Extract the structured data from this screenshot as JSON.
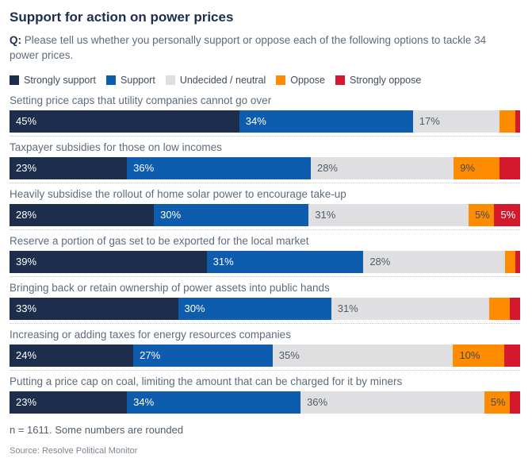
{
  "page": {
    "title": "Support for action on power prices",
    "question_prefix": "Q:",
    "question_text": " Please tell us whether you personally support or oppose each of the following options to tackle 34 power prices.",
    "footnote": "n = 1611. Some numbers are rounded",
    "source": "Source: Resolve Political Monitor"
  },
  "colors": {
    "series": [
      "#1d2e4d",
      "#0e5cae",
      "#dfdfe1",
      "#ff8c00",
      "#d4182e"
    ],
    "segment_label_colors": [
      "#ffffff",
      "#ffffff",
      "#4f5e6b",
      "#3d4a57",
      "#ffffff"
    ],
    "title": "#1d2e4d",
    "row_label": "#5c6c7c"
  },
  "legend": [
    {
      "label": "Strongly support"
    },
    {
      "label": "Support"
    },
    {
      "label": "Undecided / neutral"
    },
    {
      "label": "Oppose"
    },
    {
      "label": "Strongly oppose"
    }
  ],
  "chart_data": {
    "type": "bar",
    "stacked": true,
    "orientation": "horizontal",
    "title": "Support for action on power prices",
    "unit": "%",
    "xlim": [
      0,
      100
    ],
    "grid": false,
    "legend_position": "top",
    "series_names": [
      "Strongly support",
      "Support",
      "Undecided / neutral",
      "Oppose",
      "Strongly oppose"
    ],
    "rows": [
      {
        "category": "Setting price caps that utility companies cannot go over",
        "values": [
          45,
          34,
          17,
          3,
          1
        ],
        "labels": [
          "45%",
          "34%",
          "17%",
          null,
          null
        ]
      },
      {
        "category": "Taxpayer subsidies for those on low incomes",
        "values": [
          23,
          36,
          28,
          9,
          4
        ],
        "labels": [
          "23%",
          "36%",
          "28%",
          "9%",
          null
        ]
      },
      {
        "category": "Heavily subsidise the rollout of home solar power to encourage take-up",
        "values": [
          28,
          30,
          31,
          5,
          5
        ],
        "labels": [
          "28%",
          "30%",
          "31%",
          "5%",
          "5%"
        ]
      },
      {
        "category": "Reserve a portion of gas set to be exported for the local market",
        "values": [
          39,
          31,
          28,
          2,
          1
        ],
        "labels": [
          "39%",
          "31%",
          "28%",
          null,
          null
        ]
      },
      {
        "category": "Bringing back or retain ownership of power assets into public hands",
        "values": [
          33,
          30,
          31,
          4,
          2
        ],
        "labels": [
          "33%",
          "30%",
          "31%",
          null,
          null
        ]
      },
      {
        "category": "Increasing or adding taxes for energy resources companies",
        "values": [
          24,
          27,
          35,
          10,
          3
        ],
        "labels": [
          "24%",
          "27%",
          "35%",
          "10%",
          null
        ]
      },
      {
        "category": "Putting a price cap on coal, limiting the amount that can be charged for it by miners",
        "values": [
          23,
          34,
          36,
          5,
          2
        ],
        "labels": [
          "23%",
          "34%",
          "36%",
          "5%",
          null
        ]
      }
    ]
  }
}
